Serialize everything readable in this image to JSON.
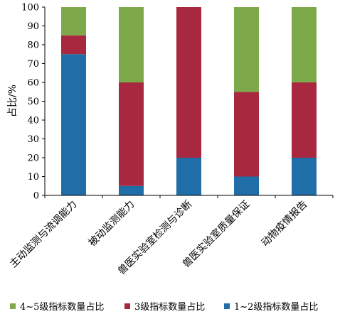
{
  "chart_data": {
    "type": "bar",
    "stacked": true,
    "categories": [
      "主动监测与流调能力",
      "被动监测能力",
      "兽医实验室检测与诊断",
      "兽医实验室质量保证",
      "动物疫情报告"
    ],
    "series": [
      {
        "name": "1~2级指标数量占比",
        "values": [
          75,
          5,
          20,
          10,
          20
        ],
        "color": "#1f6ea8"
      },
      {
        "name": "3级指标数量占比",
        "values": [
          10,
          55,
          80,
          45,
          40
        ],
        "color": "#a8283f"
      },
      {
        "name": "4~5级指标数量占比",
        "values": [
          15,
          40,
          0,
          45,
          40
        ],
        "color": "#7ea94b"
      }
    ],
    "ylabel": "占比/%",
    "xlabel": "",
    "ylim": [
      0,
      100
    ],
    "yticks": [
      0,
      10,
      20,
      30,
      40,
      50,
      60,
      70,
      80,
      90,
      100
    ],
    "grid": false,
    "legend": {
      "position": "bottom",
      "order": [
        "4~5级指标数量占比",
        "3级指标数量占比",
        "1~2级指标数量占比"
      ]
    }
  }
}
